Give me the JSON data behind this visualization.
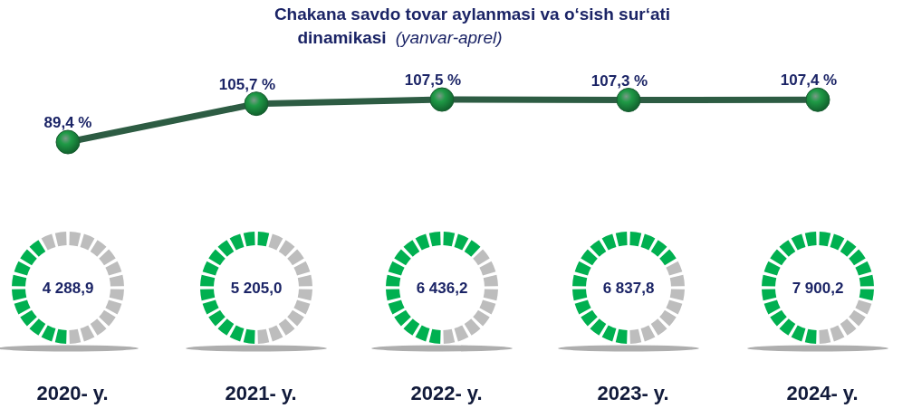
{
  "chart_data": [
    {
      "type": "line",
      "title": "Chakana savdo tovar aylanmasi va o‘sish sur‘ati dinamikasi",
      "subtitle": "(yanvar-aprel)",
      "categories": [
        "2020- y.",
        "2021- y.",
        "2022- y.",
        "2023- y.",
        "2024- y."
      ],
      "series": [
        {
          "color": "#2d5c43",
          "values": [
            89.4,
            105.7,
            107.5,
            107.3,
            107.4
          ],
          "value_labels": [
            "89,4 %",
            "105,7 %",
            "107,5 %",
            "107,3 %",
            "107,4 %"
          ]
        }
      ],
      "marker": "circle",
      "line_style": "solid"
    },
    {
      "type": "other",
      "values": [
        4288.9,
        5205.0,
        6436.2,
        6837.8,
        7900.2
      ],
      "value_labels": [
        "4 288,9",
        "5 205,0",
        "6 436,2",
        "6 837,8",
        "7 900,2"
      ],
      "color": "#00b050"
    }
  ]
}
